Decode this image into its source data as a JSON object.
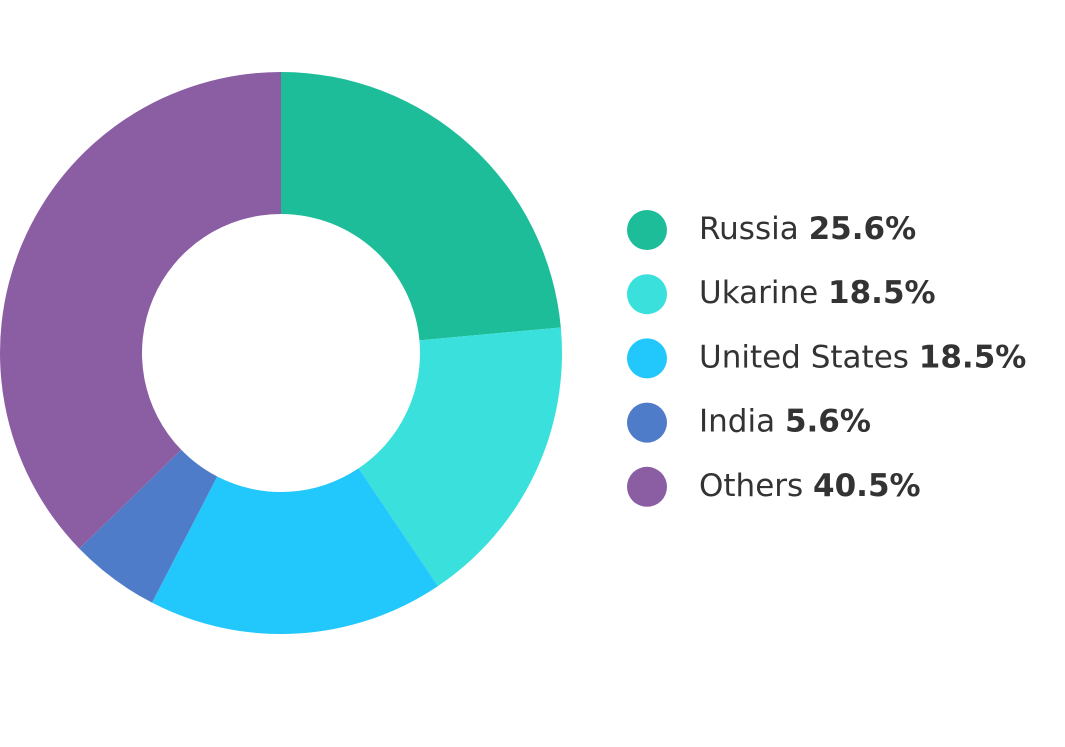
{
  "chart_data": {
    "type": "donut",
    "categories": [
      "Russia",
      "Ukarine",
      "United States",
      "India",
      "Others"
    ],
    "values": [
      25.6,
      18.5,
      18.5,
      5.6,
      40.5
    ],
    "value_labels": [
      "25.6%",
      "18.5%",
      "18.5%",
      "5.6%",
      "40.5%"
    ],
    "colors": [
      "#1dbd9a",
      "#3ae0dc",
      "#22c7fc",
      "#4f7cc9",
      "#8b5ea4"
    ]
  }
}
